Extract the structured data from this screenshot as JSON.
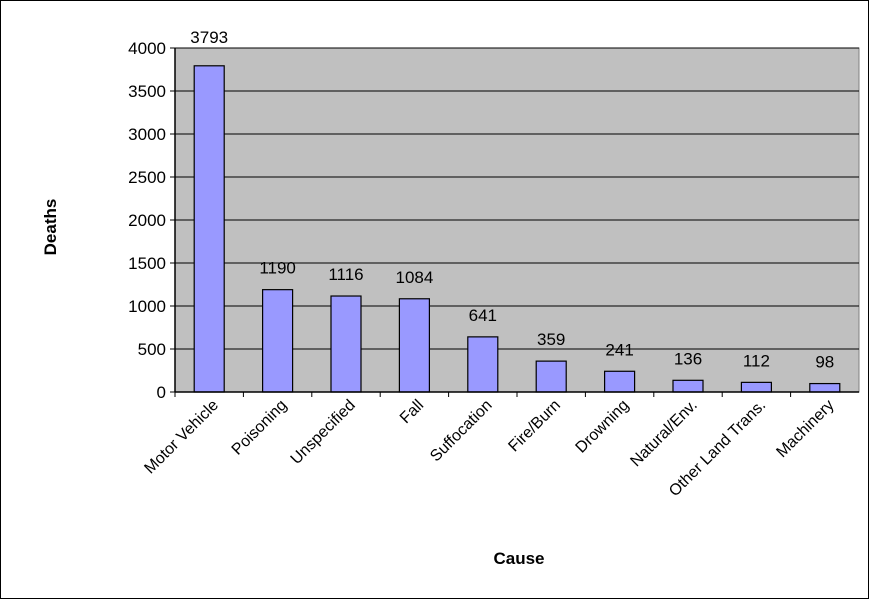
{
  "chart_data": {
    "type": "bar",
    "title": "",
    "xlabel": "Cause",
    "ylabel": "Deaths",
    "categories": [
      "Motor Vehicle",
      "Poisoning",
      "Unspecified",
      "Fall",
      "Suffocation",
      "Fire/Burn",
      "Drowning",
      "Natural/Env.",
      "Other Land Trans.",
      "Machinery"
    ],
    "values": [
      3793,
      1190,
      1116,
      1084,
      641,
      359,
      241,
      136,
      112,
      98
    ],
    "ylim": [
      0,
      4000
    ],
    "yticks": [
      0,
      500,
      1000,
      1500,
      2000,
      2500,
      3000,
      3500,
      4000
    ],
    "grid": true,
    "legend": "none",
    "colors": {
      "bar_fill": "#9999ff",
      "plot_background": "#c0c0c0",
      "bar_stroke": "#000000"
    }
  }
}
